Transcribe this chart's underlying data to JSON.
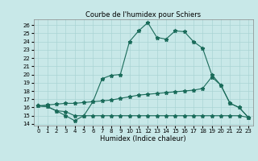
{
  "title": "Courbe de l'humidex pour Schiers",
  "xlabel": "Humidex (Indice chaleur)",
  "background_color": "#c8e8e8",
  "grid_color": "#aad4d4",
  "line_color": "#1a6b5a",
  "xlim": [
    -0.5,
    23.5
  ],
  "ylim": [
    13.8,
    26.7
  ],
  "yticks": [
    14,
    15,
    16,
    17,
    18,
    19,
    20,
    21,
    22,
    23,
    24,
    25,
    26
  ],
  "xticks": [
    0,
    1,
    2,
    3,
    4,
    5,
    6,
    7,
    8,
    9,
    10,
    11,
    12,
    13,
    14,
    15,
    16,
    17,
    18,
    19,
    20,
    21,
    22,
    23
  ],
  "series1_x": [
    0,
    1,
    2,
    3,
    4,
    5,
    6,
    7,
    8,
    9,
    10,
    11,
    12,
    13,
    14,
    15,
    16,
    17,
    18,
    19,
    20,
    21,
    22,
    23
  ],
  "series1_y": [
    16.2,
    16.1,
    15.6,
    15.0,
    14.4,
    15.0,
    16.7,
    19.5,
    19.9,
    20.0,
    24.0,
    25.3,
    26.3,
    24.5,
    24.3,
    25.3,
    25.2,
    24.0,
    23.2,
    20.0,
    18.7,
    16.5,
    16.0,
    14.8
  ],
  "series2_x": [
    0,
    1,
    2,
    3,
    4,
    5,
    6,
    7,
    8,
    9,
    10,
    11,
    12,
    13,
    14,
    15,
    16,
    17,
    18,
    19,
    20,
    21,
    22,
    23
  ],
  "series2_y": [
    16.2,
    16.1,
    15.6,
    15.5,
    15.0,
    15.0,
    15.0,
    15.0,
    15.0,
    15.0,
    15.0,
    15.0,
    15.0,
    15.0,
    15.0,
    15.0,
    15.0,
    15.0,
    15.0,
    15.0,
    15.0,
    15.0,
    15.0,
    14.8
  ],
  "series3_x": [
    0,
    1,
    2,
    3,
    4,
    5,
    6,
    7,
    8,
    9,
    10,
    11,
    12,
    13,
    14,
    15,
    16,
    17,
    18,
    19,
    20,
    21,
    22,
    23
  ],
  "series3_y": [
    16.2,
    16.3,
    16.4,
    16.5,
    16.5,
    16.6,
    16.7,
    16.8,
    16.9,
    17.1,
    17.3,
    17.5,
    17.6,
    17.7,
    17.8,
    17.9,
    18.0,
    18.1,
    18.3,
    19.7,
    18.7,
    16.5,
    16.0,
    14.8
  ],
  "title_fontsize": 6,
  "xlabel_fontsize": 6,
  "tick_fontsize": 5
}
